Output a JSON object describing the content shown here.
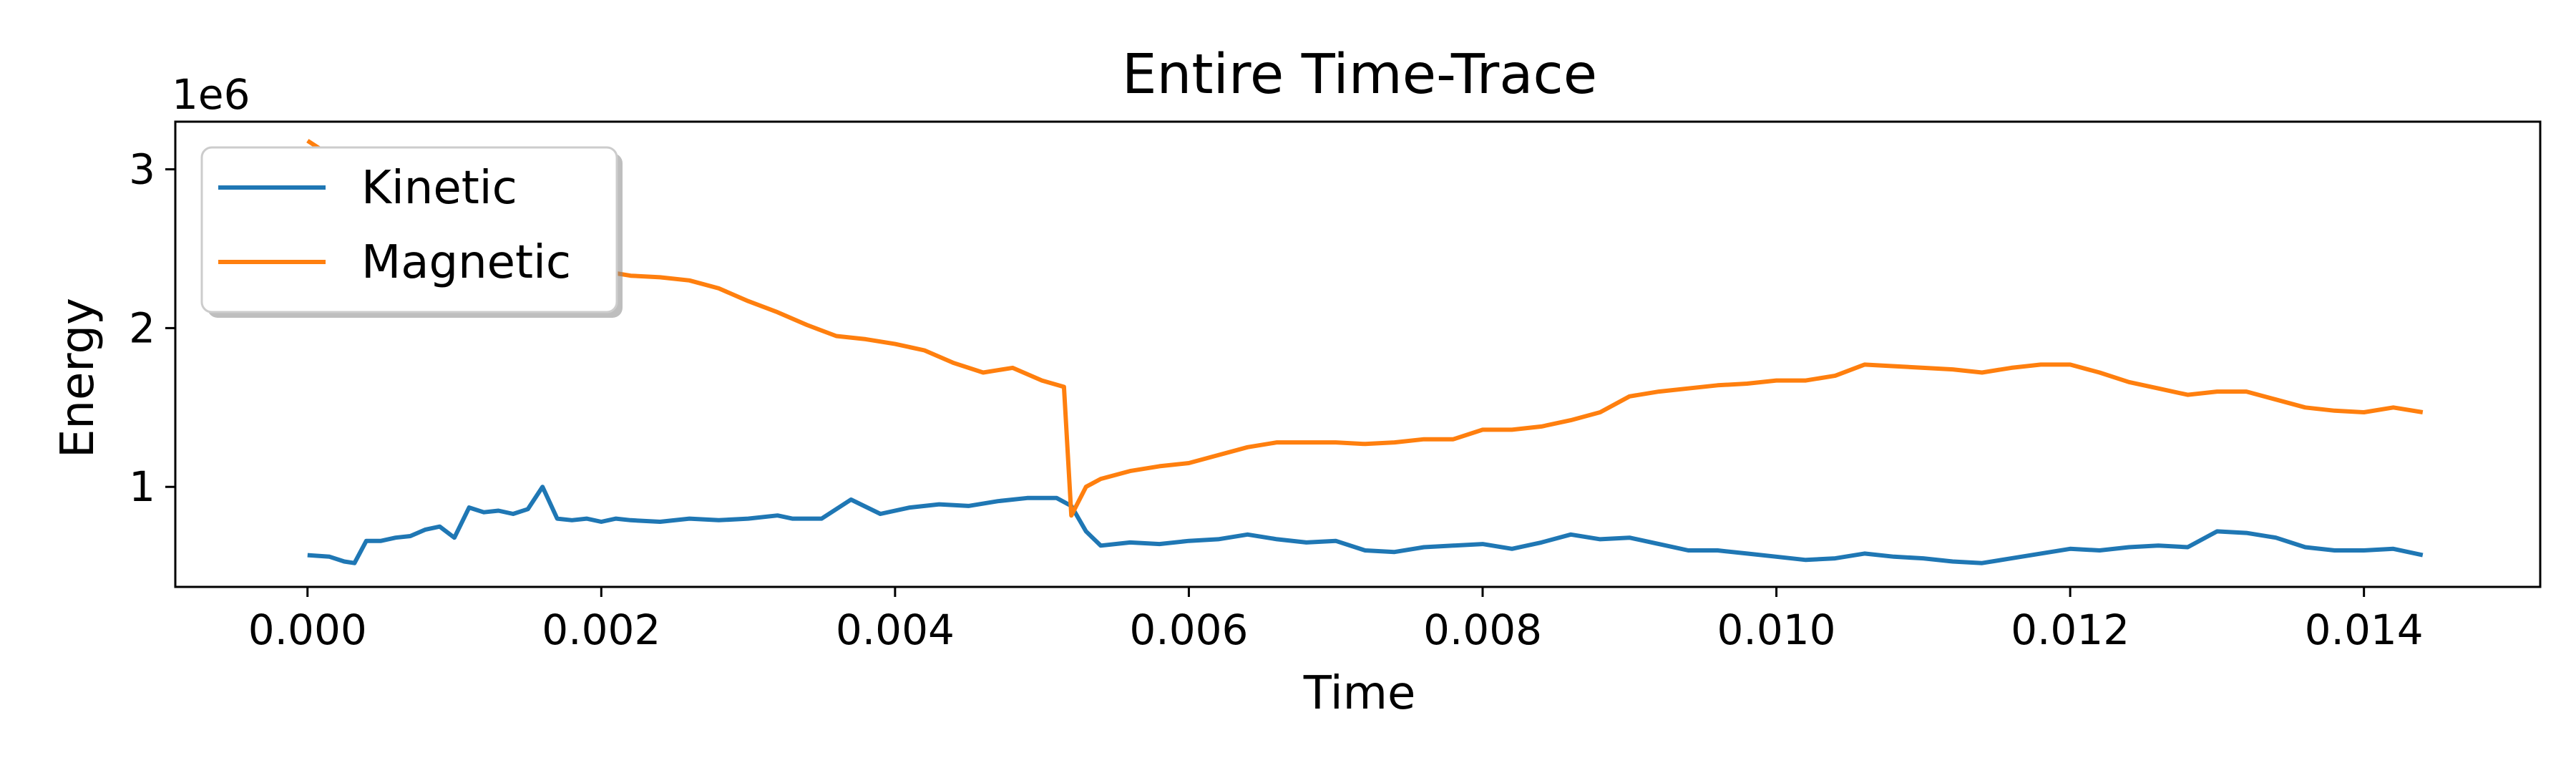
{
  "chart_data": {
    "type": "line",
    "title": "Entire Time-Trace",
    "xlabel": "Time",
    "ylabel": "Energy",
    "y_offset_label": "1e6",
    "xlim": [
      -0.0009,
      0.0152
    ],
    "ylim": [
      0.37,
      3.3
    ],
    "x_ticks": [
      0.0,
      0.002,
      0.004,
      0.006,
      0.008,
      0.01,
      0.012,
      0.014
    ],
    "x_tick_labels": [
      "0.000",
      "0.002",
      "0.004",
      "0.006",
      "0.008",
      "0.010",
      "0.012",
      "0.014"
    ],
    "y_ticks": [
      1,
      2,
      3
    ],
    "y_tick_labels": [
      "1",
      "2",
      "3"
    ],
    "grid": false,
    "legend_position": "top-left",
    "series": [
      {
        "name": "Kinetic",
        "color": "#1f77b4",
        "x": [
          0.0,
          0.00015,
          0.00025,
          0.00032,
          0.0004,
          0.0005,
          0.0006,
          0.0007,
          0.0008,
          0.0009,
          0.001,
          0.0011,
          0.0012,
          0.0013,
          0.0014,
          0.0015,
          0.0016,
          0.0017,
          0.0018,
          0.0019,
          0.002,
          0.0021,
          0.0022,
          0.0024,
          0.0026,
          0.0028,
          0.003,
          0.0032,
          0.0033,
          0.0035,
          0.0037,
          0.0039,
          0.0041,
          0.0043,
          0.0045,
          0.0047,
          0.0049,
          0.0051,
          0.0052,
          0.0053,
          0.0054,
          0.0056,
          0.0058,
          0.006,
          0.0062,
          0.0064,
          0.0066,
          0.0068,
          0.007,
          0.0072,
          0.0074,
          0.0076,
          0.0078,
          0.008,
          0.0082,
          0.0084,
          0.0086,
          0.0088,
          0.009,
          0.0092,
          0.0094,
          0.0096,
          0.0098,
          0.01,
          0.0102,
          0.0104,
          0.0106,
          0.0108,
          0.011,
          0.0112,
          0.0114,
          0.0116,
          0.0118,
          0.012,
          0.0122,
          0.0124,
          0.0126,
          0.0128,
          0.013,
          0.0132,
          0.0134,
          0.0136,
          0.0138,
          0.014,
          0.0142,
          0.0144
        ],
        "values": [
          0.57,
          0.56,
          0.53,
          0.52,
          0.66,
          0.66,
          0.68,
          0.69,
          0.73,
          0.75,
          0.68,
          0.87,
          0.84,
          0.85,
          0.83,
          0.86,
          1.0,
          0.8,
          0.79,
          0.8,
          0.78,
          0.8,
          0.79,
          0.78,
          0.8,
          0.79,
          0.8,
          0.82,
          0.8,
          0.8,
          0.92,
          0.83,
          0.87,
          0.89,
          0.88,
          0.91,
          0.93,
          0.93,
          0.88,
          0.72,
          0.63,
          0.65,
          0.64,
          0.66,
          0.67,
          0.7,
          0.67,
          0.65,
          0.66,
          0.6,
          0.59,
          0.62,
          0.63,
          0.64,
          0.61,
          0.65,
          0.7,
          0.67,
          0.68,
          0.64,
          0.6,
          0.6,
          0.58,
          0.56,
          0.54,
          0.55,
          0.58,
          0.56,
          0.55,
          0.53,
          0.52,
          0.55,
          0.58,
          0.61,
          0.6,
          0.62,
          0.63,
          0.62,
          0.72,
          0.71,
          0.68,
          0.62,
          0.6,
          0.6,
          0.61,
          0.57
        ]
      },
      {
        "name": "Magnetic",
        "color": "#ff7f0e",
        "x": [
          0.0,
          0.0001,
          0.0002,
          0.0004,
          0.0006,
          0.0008,
          0.001,
          0.0012,
          0.0014,
          0.0016,
          0.0018,
          0.002,
          0.0022,
          0.0024,
          0.0026,
          0.0028,
          0.003,
          0.0032,
          0.0034,
          0.0036,
          0.0038,
          0.004,
          0.0042,
          0.0044,
          0.0046,
          0.0048,
          0.005,
          0.00515,
          0.0052,
          0.0053,
          0.0054,
          0.0056,
          0.0058,
          0.006,
          0.0062,
          0.0064,
          0.0066,
          0.0068,
          0.007,
          0.0072,
          0.0074,
          0.0076,
          0.0078,
          0.008,
          0.0082,
          0.0084,
          0.0086,
          0.0088,
          0.009,
          0.0092,
          0.0094,
          0.0096,
          0.0098,
          0.01,
          0.0102,
          0.0104,
          0.0106,
          0.0108,
          0.011,
          0.0112,
          0.0114,
          0.0116,
          0.0118,
          0.012,
          0.0122,
          0.0124,
          0.0126,
          0.0128,
          0.013,
          0.0132,
          0.0134,
          0.0136,
          0.0138,
          0.014,
          0.0142,
          0.0144
        ],
        "values": [
          3.18,
          3.12,
          3.0,
          2.9,
          2.8,
          2.7,
          2.6,
          2.5,
          2.45,
          2.4,
          2.38,
          2.36,
          2.33,
          2.32,
          2.3,
          2.25,
          2.17,
          2.1,
          2.02,
          1.95,
          1.93,
          1.9,
          1.86,
          1.78,
          1.72,
          1.75,
          1.67,
          1.63,
          0.82,
          1.0,
          1.05,
          1.1,
          1.13,
          1.15,
          1.2,
          1.25,
          1.28,
          1.28,
          1.28,
          1.27,
          1.28,
          1.3,
          1.3,
          1.36,
          1.36,
          1.38,
          1.42,
          1.47,
          1.57,
          1.6,
          1.62,
          1.64,
          1.65,
          1.67,
          1.67,
          1.7,
          1.77,
          1.76,
          1.75,
          1.74,
          1.72,
          1.75,
          1.77,
          1.77,
          1.72,
          1.66,
          1.62,
          1.58,
          1.6,
          1.6,
          1.55,
          1.5,
          1.48,
          1.47,
          1.5,
          1.47
        ]
      }
    ]
  }
}
